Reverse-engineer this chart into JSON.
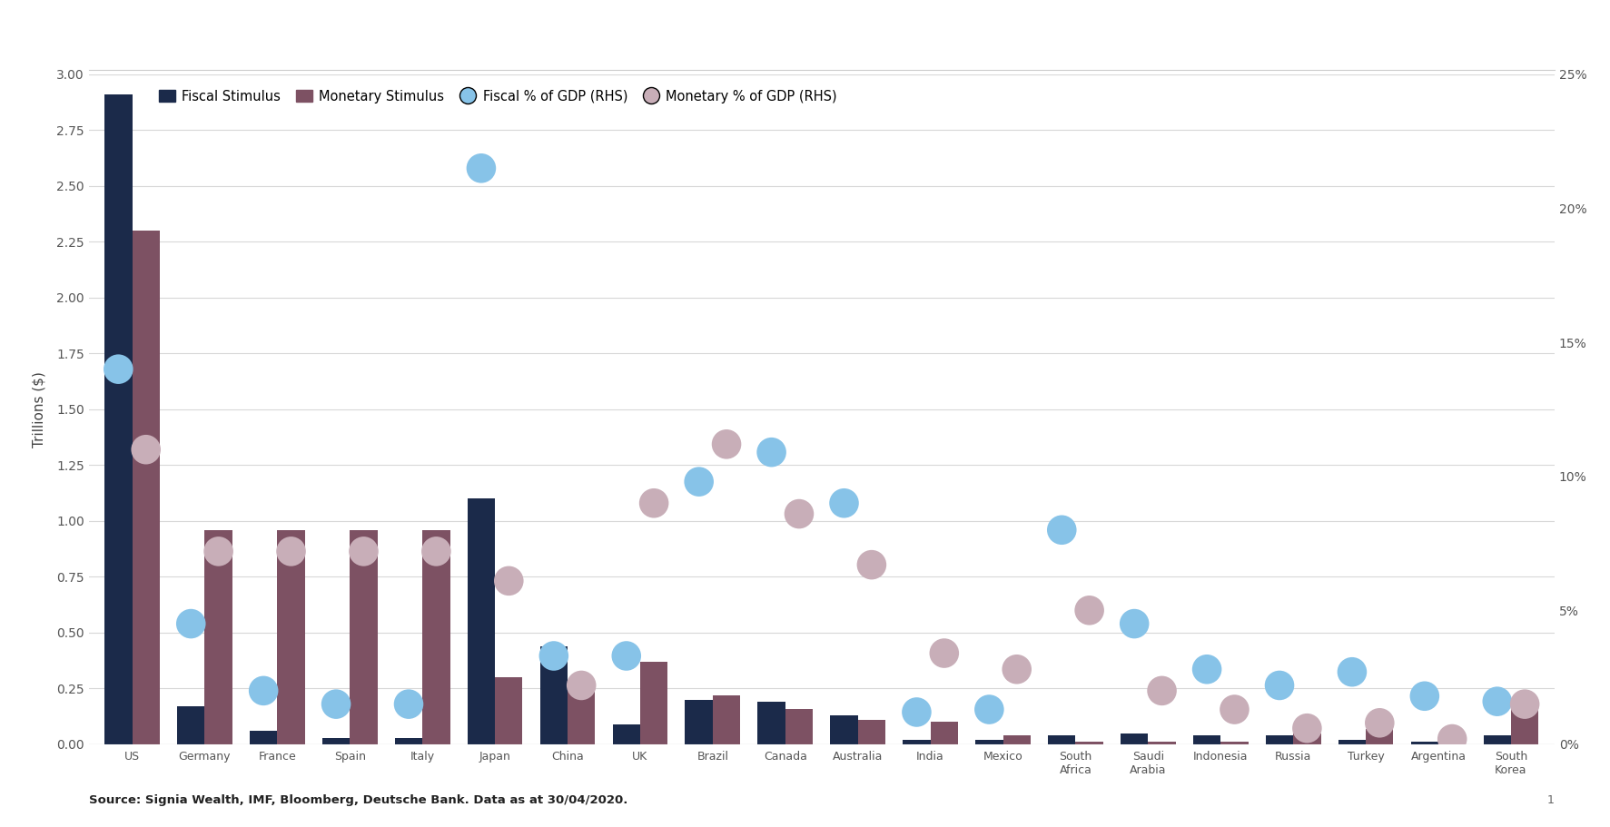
{
  "categories": [
    "US",
    "Germany",
    "France",
    "Spain",
    "Italy",
    "Japan",
    "China",
    "UK",
    "Brazil",
    "Canada",
    "Australia",
    "India",
    "Mexico",
    "South\nAfrica",
    "Saudi\nArabia",
    "Indonesia",
    "Russia",
    "Turkey",
    "Argentina",
    "South\nKorea"
  ],
  "fiscal_stimulus": [
    2.91,
    0.17,
    0.06,
    0.03,
    0.03,
    1.1,
    0.44,
    0.09,
    0.2,
    0.19,
    0.13,
    0.02,
    0.02,
    0.04,
    0.05,
    0.04,
    0.04,
    0.02,
    0.01,
    0.04
  ],
  "monetary_stimulus": [
    2.3,
    0.96,
    0.96,
    0.96,
    0.96,
    0.3,
    0.25,
    0.37,
    0.22,
    0.16,
    0.11,
    0.1,
    0.04,
    0.01,
    0.01,
    0.01,
    0.05,
    0.07,
    0.01,
    0.16
  ],
  "fiscal_pct_gdp": [
    14.0,
    4.5,
    2.0,
    1.5,
    1.5,
    21.5,
    3.3,
    3.3,
    9.8,
    10.9,
    9.0,
    1.2,
    1.3,
    8.0,
    4.5,
    2.8,
    2.2,
    2.7,
    1.8,
    1.6
  ],
  "monetary_pct_gdp": [
    11.0,
    7.2,
    7.2,
    7.2,
    7.2,
    6.1,
    2.2,
    9.0,
    11.2,
    8.6,
    6.7,
    3.4,
    2.8,
    5.0,
    2.0,
    1.3,
    0.6,
    0.8,
    0.2,
    1.5
  ],
  "fiscal_bar_color": "#1b2a4a",
  "monetary_bar_color": "#7d5163",
  "fiscal_dot_color": "#87c3e8",
  "monetary_dot_color": "#c8aeb8",
  "ylim_left": [
    0.0,
    3.0
  ],
  "ylim_right": [
    0,
    25
  ],
  "ylabel_left": "Trillions ($)",
  "yticks_left": [
    0.0,
    0.25,
    0.5,
    0.75,
    1.0,
    1.25,
    1.5,
    1.75,
    2.0,
    2.25,
    2.5,
    2.75,
    3.0
  ],
  "yticks_left_labels": [
    "0.00",
    "0.25",
    "0.50",
    "0.75",
    "1.00",
    "1.25",
    "1.50",
    "1.75",
    "2.00",
    "2.25",
    "2.50",
    "2.75",
    "3.00"
  ],
  "yticks_right": [
    0,
    5,
    10,
    15,
    20,
    25
  ],
  "yticks_right_labels": [
    "0%",
    "5%",
    "10%",
    "15%",
    "20%",
    "25%"
  ],
  "source_text": "Source: Signia Wealth, IMF, Bloomberg, Deutsche Bank. Data as at 30/04/2020.",
  "footnote": "1",
  "bar_width": 0.38,
  "dot_size": 550,
  "legend_items": [
    "Fiscal Stimulus",
    "Monetary Stimulus",
    "Fiscal % of GDP (RHS)",
    "Monetary % of GDP (RHS)"
  ],
  "grid_color": "#d8d8d8",
  "tick_label_color": "#555555",
  "ylabel_color": "#444444"
}
